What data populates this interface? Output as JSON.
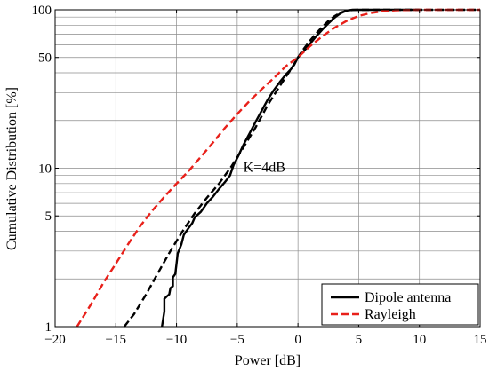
{
  "chart_data": {
    "type": "line",
    "title": "",
    "xlabel": "Power [dB]",
    "ylabel": "Cumulative Distribution [%]",
    "xlim": [
      -20,
      15
    ],
    "ylim": [
      1,
      100
    ],
    "yscale": "log",
    "grid": true,
    "xticks": [
      -20,
      -15,
      -10,
      -5,
      0,
      5,
      10,
      15
    ],
    "xtick_labels": [
      "−20",
      "−15",
      "−10",
      "−5",
      "0",
      "5",
      "10",
      "15"
    ],
    "yticks": [
      1,
      5,
      10,
      50,
      100
    ],
    "ytick_labels": [
      "1",
      "5",
      "10",
      "50",
      "100"
    ],
    "legend_position": "bottom-right",
    "annotations": [
      {
        "text": "K=4dB",
        "x": -4.5,
        "y": 9.5
      }
    ],
    "series": [
      {
        "name": "Dipole antenna",
        "color": "#000000",
        "style": "solid",
        "points": [
          [
            -11.2,
            1
          ],
          [
            -11.0,
            1.25
          ],
          [
            -11.0,
            1.5
          ],
          [
            -10.8,
            1.55
          ],
          [
            -10.6,
            1.6
          ],
          [
            -10.5,
            1.75
          ],
          [
            -10.3,
            1.8
          ],
          [
            -10.3,
            2.05
          ],
          [
            -10.1,
            2.15
          ],
          [
            -10.0,
            2.5
          ],
          [
            -9.9,
            2.9
          ],
          [
            -9.6,
            3.3
          ],
          [
            -9.4,
            3.8
          ],
          [
            -9.0,
            4.2
          ],
          [
            -8.7,
            4.5
          ],
          [
            -8.5,
            4.9
          ],
          [
            -8.0,
            5.3
          ],
          [
            -7.5,
            6.0
          ],
          [
            -7.0,
            6.6
          ],
          [
            -6.5,
            7.4
          ],
          [
            -6.0,
            8.2
          ],
          [
            -5.6,
            9.0
          ],
          [
            -5.3,
            10.5
          ],
          [
            -4.9,
            12.0
          ],
          [
            -4.5,
            14.0
          ],
          [
            -4.0,
            16.5
          ],
          [
            -3.5,
            19.5
          ],
          [
            -3.0,
            23.0
          ],
          [
            -2.5,
            27.0
          ],
          [
            -2.0,
            31.0
          ],
          [
            -1.5,
            35.0
          ],
          [
            -1.0,
            39.0
          ],
          [
            -0.6,
            42.0
          ],
          [
            -0.3,
            45.0
          ],
          [
            0.0,
            50.0
          ],
          [
            0.5,
            55.0
          ],
          [
            1.0,
            61.0
          ],
          [
            1.5,
            68.0
          ],
          [
            2.0,
            75.0
          ],
          [
            2.5,
            82.0
          ],
          [
            3.0,
            89.0
          ],
          [
            3.5,
            95.0
          ],
          [
            4.0,
            99.0
          ],
          [
            4.5,
            100
          ],
          [
            10.0,
            100
          ]
        ]
      },
      {
        "name": "",
        "color": "#000000",
        "style": "dashed",
        "points": [
          [
            -14.3,
            1
          ],
          [
            -13.5,
            1.2
          ],
          [
            -12.5,
            1.6
          ],
          [
            -11.5,
            2.2
          ],
          [
            -10.5,
            3.0
          ],
          [
            -9.5,
            4.0
          ],
          [
            -8.5,
            5.2
          ],
          [
            -7.5,
            6.5
          ],
          [
            -6.5,
            8.0
          ],
          [
            -5.5,
            10.2
          ],
          [
            -4.5,
            13.5
          ],
          [
            -3.5,
            18.0
          ],
          [
            -2.5,
            25.0
          ],
          [
            -1.5,
            33.0
          ],
          [
            -0.5,
            43.0
          ],
          [
            0.0,
            50.0
          ],
          [
            0.5,
            57.0
          ],
          [
            1.0,
            64.0
          ],
          [
            1.5,
            71.0
          ],
          [
            2.0,
            78.0
          ],
          [
            2.5,
            85.0
          ],
          [
            3.0,
            91.0
          ],
          [
            3.5,
            96.0
          ],
          [
            4.0,
            98.5
          ],
          [
            4.5,
            99.7
          ],
          [
            5.0,
            100
          ],
          [
            15.0,
            100
          ]
        ]
      },
      {
        "name": "Rayleigh",
        "color": "#e8201a",
        "style": "dashed",
        "points": [
          [
            -18.2,
            1
          ],
          [
            -17.0,
            1.4
          ],
          [
            -16.0,
            1.9
          ],
          [
            -15.0,
            2.5
          ],
          [
            -14.0,
            3.3
          ],
          [
            -13.0,
            4.3
          ],
          [
            -12.0,
            5.4
          ],
          [
            -11.0,
            6.6
          ],
          [
            -10.0,
            8.0
          ],
          [
            -9.0,
            9.6
          ],
          [
            -8.0,
            11.8
          ],
          [
            -7.0,
            14.5
          ],
          [
            -6.0,
            18.0
          ],
          [
            -5.0,
            22.0
          ],
          [
            -4.0,
            26.5
          ],
          [
            -3.0,
            31.5
          ],
          [
            -2.0,
            37.0
          ],
          [
            -1.0,
            44.0
          ],
          [
            0.0,
            50.0
          ],
          [
            1.0,
            59.0
          ],
          [
            2.0,
            68.0
          ],
          [
            3.0,
            77.0
          ],
          [
            4.0,
            85.0
          ],
          [
            5.0,
            91.5
          ],
          [
            6.0,
            95.5
          ],
          [
            7.0,
            98.0
          ],
          [
            8.0,
            99.3
          ],
          [
            9.0,
            99.8
          ],
          [
            10.0,
            100
          ],
          [
            15.0,
            100
          ]
        ]
      }
    ]
  }
}
